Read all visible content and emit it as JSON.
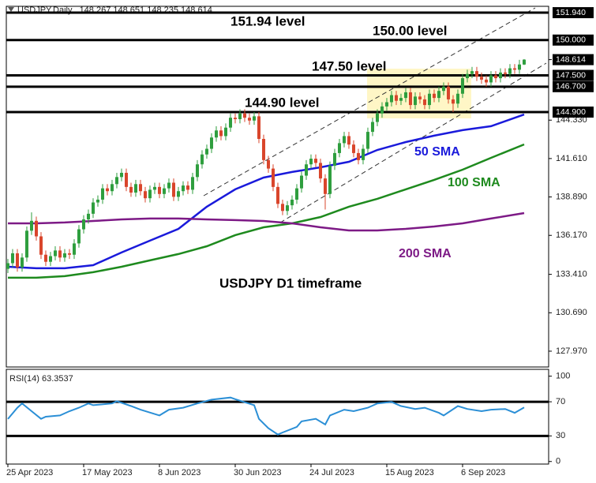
{
  "chart_data": [
    {
      "type": "candlestick",
      "title": "USDJPY,Daily",
      "annotation": "USDJPY D1 timeframe",
      "bull_color": "#2e9e3e",
      "bear_color": "#d9452b",
      "xlim": [
        -0.33,
        114.17
      ],
      "ylim": [
        126.85,
        152.39
      ],
      "yticks": [
        {
          "value": 127.97,
          "label": "127.970"
        },
        {
          "value": 130.69,
          "label": "130.690"
        },
        {
          "value": 133.41,
          "label": "133.410"
        },
        {
          "value": 136.17,
          "label": "136.170"
        },
        {
          "value": 138.89,
          "label": "138.890"
        },
        {
          "value": 141.61,
          "label": "141.610"
        },
        {
          "value": 144.33,
          "label": "144.330"
        }
      ],
      "levels": [
        {
          "value": 151.94,
          "label": "151.94 level",
          "axis_label": "151.940"
        },
        {
          "value": 150.0,
          "label": "150.00 level",
          "axis_label": "150.000"
        },
        {
          "value": 147.5,
          "label": "147.50 level",
          "axis_label": "147.500"
        },
        {
          "value": 146.7,
          "axis_label": "146.700"
        },
        {
          "value": 144.9,
          "label": "144.90 level",
          "axis_label": "144.900"
        }
      ],
      "candles": [
        [
          133.8,
          134.5,
          133.5,
          134.2
        ],
        [
          134.2,
          135.2,
          133.9,
          134.9
        ],
        [
          134.9,
          135.2,
          133.6,
          133.9
        ],
        [
          133.9,
          134.9,
          133.6,
          134.6
        ],
        [
          134.6,
          136.8,
          134.3,
          136.5
        ],
        [
          136.5,
          137.8,
          136.2,
          137.2
        ],
        [
          137.2,
          137.5,
          135.8,
          136.1
        ],
        [
          136.1,
          136.4,
          134.5,
          134.8
        ],
        [
          134.8,
          135.1,
          134.0,
          134.3
        ],
        [
          134.3,
          135.0,
          134.0,
          134.7
        ],
        [
          134.7,
          135.4,
          134.4,
          135.1
        ],
        [
          135.1,
          135.4,
          134.3,
          134.6
        ],
        [
          134.6,
          135.2,
          134.3,
          134.9
        ],
        [
          134.9,
          135.2,
          134.5,
          134.8
        ],
        [
          134.8,
          135.9,
          134.5,
          135.6
        ],
        [
          135.6,
          136.9,
          135.3,
          136.6
        ],
        [
          136.6,
          137.6,
          136.3,
          137.3
        ],
        [
          137.3,
          138.0,
          137.0,
          137.7
        ],
        [
          137.7,
          138.8,
          137.4,
          138.5
        ],
        [
          138.5,
          139.0,
          138.2,
          138.7
        ],
        [
          138.7,
          139.8,
          138.4,
          139.5
        ],
        [
          139.5,
          139.8,
          139.0,
          139.3
        ],
        [
          139.3,
          140.1,
          139.0,
          139.8
        ],
        [
          139.8,
          140.6,
          139.5,
          140.3
        ],
        [
          140.3,
          140.9,
          140.0,
          140.6
        ],
        [
          140.6,
          140.9,
          139.3,
          139.6
        ],
        [
          139.6,
          139.9,
          138.9,
          139.2
        ],
        [
          139.2,
          140.1,
          138.9,
          139.8
        ],
        [
          139.8,
          140.1,
          139.0,
          139.3
        ],
        [
          139.3,
          139.6,
          138.5,
          138.8
        ],
        [
          138.8,
          139.7,
          138.5,
          139.4
        ],
        [
          139.4,
          139.9,
          139.1,
          139.6
        ],
        [
          139.6,
          139.9,
          138.8,
          139.1
        ],
        [
          139.1,
          139.8,
          138.8,
          139.5
        ],
        [
          139.5,
          140.2,
          139.2,
          139.9
        ],
        [
          139.9,
          140.2,
          138.6,
          138.9
        ],
        [
          138.9,
          139.6,
          138.6,
          139.3
        ],
        [
          139.3,
          140.0,
          139.0,
          139.7
        ],
        [
          139.7,
          140.0,
          139.1,
          139.4
        ],
        [
          139.4,
          140.6,
          139.1,
          140.3
        ],
        [
          140.3,
          141.5,
          140.0,
          141.2
        ],
        [
          141.2,
          142.2,
          140.9,
          141.9
        ],
        [
          141.9,
          142.6,
          141.6,
          142.3
        ],
        [
          142.3,
          143.4,
          142.0,
          143.1
        ],
        [
          143.1,
          143.9,
          142.8,
          143.6
        ],
        [
          143.6,
          143.9,
          142.9,
          143.2
        ],
        [
          143.2,
          144.1,
          142.9,
          143.8
        ],
        [
          143.8,
          144.8,
          143.5,
          144.5
        ],
        [
          144.5,
          144.8,
          144.1,
          144.4
        ],
        [
          144.4,
          145.1,
          144.1,
          144.8
        ],
        [
          144.8,
          145.1,
          144.2,
          144.5
        ],
        [
          144.5,
          144.8,
          144.0,
          144.3
        ],
        [
          144.3,
          144.9,
          144.0,
          144.6
        ],
        [
          144.6,
          144.9,
          142.7,
          143.0
        ],
        [
          143.0,
          143.3,
          141.2,
          141.5
        ],
        [
          141.5,
          141.8,
          140.6,
          140.9
        ],
        [
          140.9,
          141.2,
          139.3,
          139.6
        ],
        [
          139.6,
          139.9,
          138.1,
          138.4
        ],
        [
          138.4,
          138.7,
          137.6,
          137.9
        ],
        [
          137.9,
          138.6,
          137.6,
          138.3
        ],
        [
          138.3,
          139.0,
          138.0,
          138.7
        ],
        [
          138.7,
          139.8,
          138.4,
          139.5
        ],
        [
          139.5,
          140.7,
          139.2,
          140.4
        ],
        [
          140.4,
          141.5,
          140.1,
          141.2
        ],
        [
          141.2,
          141.9,
          140.9,
          141.6
        ],
        [
          141.6,
          141.9,
          141.0,
          141.3
        ],
        [
          141.3,
          141.6,
          139.9,
          140.2
        ],
        [
          140.2,
          140.5,
          138.0,
          139.1
        ],
        [
          139.1,
          141.4,
          138.8,
          141.1
        ],
        [
          141.1,
          142.3,
          140.8,
          142.0
        ],
        [
          142.0,
          143.0,
          141.7,
          142.7
        ],
        [
          142.7,
          143.5,
          142.4,
          143.2
        ],
        [
          143.2,
          143.5,
          142.3,
          142.6
        ],
        [
          142.6,
          142.9,
          141.7,
          142.0
        ],
        [
          142.0,
          142.3,
          141.2,
          141.5
        ],
        [
          141.5,
          142.6,
          141.2,
          142.3
        ],
        [
          142.3,
          143.8,
          142.0,
          143.5
        ],
        [
          143.5,
          144.5,
          143.2,
          144.2
        ],
        [
          144.2,
          145.1,
          143.9,
          144.8
        ],
        [
          144.8,
          145.6,
          144.5,
          145.3
        ],
        [
          145.3,
          145.9,
          145.0,
          145.6
        ],
        [
          145.6,
          146.4,
          145.3,
          146.1
        ],
        [
          146.1,
          146.4,
          145.4,
          145.7
        ],
        [
          145.7,
          146.2,
          145.4,
          145.9
        ],
        [
          145.9,
          146.6,
          145.6,
          146.3
        ],
        [
          146.3,
          146.6,
          145.1,
          145.4
        ],
        [
          145.4,
          146.3,
          145.1,
          146.0
        ],
        [
          146.0,
          146.3,
          145.5,
          145.8
        ],
        [
          145.8,
          146.1,
          145.1,
          145.4
        ],
        [
          145.4,
          146.5,
          145.1,
          146.2
        ],
        [
          146.2,
          146.5,
          145.6,
          145.9
        ],
        [
          145.9,
          146.7,
          145.6,
          146.4
        ],
        [
          146.4,
          147.0,
          146.1,
          146.7
        ],
        [
          146.7,
          147.0,
          145.5,
          145.8
        ],
        [
          145.8,
          146.1,
          144.9,
          145.5
        ],
        [
          145.5,
          146.5,
          145.2,
          146.2
        ],
        [
          146.2,
          147.6,
          145.9,
          147.3
        ],
        [
          147.3,
          147.9,
          147.0,
          147.6
        ],
        [
          147.6,
          148.1,
          147.3,
          147.8
        ],
        [
          147.8,
          148.1,
          147.1,
          147.4
        ],
        [
          147.4,
          147.7,
          146.9,
          147.2
        ],
        [
          147.2,
          147.5,
          146.7,
          147.0
        ],
        [
          147.0,
          147.8,
          146.7,
          147.5
        ],
        [
          147.5,
          147.8,
          147.0,
          147.3
        ],
        [
          147.3,
          148.0,
          147.0,
          147.7
        ],
        [
          147.7,
          148.0,
          147.3,
          147.6
        ],
        [
          147.6,
          148.3,
          147.3,
          148.0
        ],
        [
          148.0,
          148.3,
          147.6,
          147.9
        ],
        [
          147.9,
          148.6,
          147.6,
          148.27
        ],
        [
          148.267,
          148.651,
          148.235,
          148.614
        ]
      ],
      "series": [
        {
          "name": "50 SMA",
          "color": "#1a1adb",
          "x": [
            0,
            6,
            12,
            18,
            24,
            30,
            36,
            42,
            48,
            54,
            60,
            66,
            72,
            78,
            84,
            90,
            96,
            102,
            109
          ],
          "values": [
            133.95,
            133.84,
            133.84,
            134.06,
            134.96,
            135.8,
            136.63,
            138.2,
            139.43,
            140.26,
            140.66,
            140.99,
            141.38,
            142.22,
            142.78,
            143.23,
            143.62,
            143.9,
            144.73
          ]
        },
        {
          "name": "100 SMA",
          "color": "#1e8a1e",
          "x": [
            0,
            6,
            12,
            18,
            24,
            30,
            36,
            42,
            48,
            54,
            60,
            66,
            72,
            78,
            84,
            90,
            96,
            102,
            109
          ],
          "values": [
            133.17,
            133.17,
            133.28,
            133.56,
            133.95,
            134.4,
            134.85,
            135.4,
            136.19,
            136.74,
            137.02,
            137.47,
            138.2,
            138.76,
            139.43,
            140.1,
            140.82,
            141.66,
            142.61
          ]
        },
        {
          "name": "200 SMA",
          "color": "#7d1a86",
          "x": [
            0,
            6,
            12,
            18,
            24,
            30,
            36,
            42,
            48,
            54,
            60,
            66,
            72,
            78,
            84,
            90,
            96,
            102,
            109
          ],
          "values": [
            137.02,
            137.02,
            137.08,
            137.19,
            137.3,
            137.36,
            137.36,
            137.3,
            137.25,
            137.19,
            137.02,
            136.74,
            136.52,
            136.52,
            136.63,
            136.8,
            137.02,
            137.36,
            137.75
          ]
        }
      ]
    },
    {
      "type": "line",
      "title": "RSI(14)",
      "color": "#2b8fd6",
      "xlim": [
        -0.33,
        114.17
      ],
      "ylim": [
        -3,
        108
      ],
      "yticks": [
        0,
        30,
        70,
        100
      ],
      "levels": [
        70,
        30
      ],
      "xticks": [
        {
          "value": 0,
          "label": "25 Apr 2023"
        },
        {
          "value": 16,
          "label": "17 May 2023"
        },
        {
          "value": 32,
          "label": "8 Jun 2023"
        },
        {
          "value": 48,
          "label": "30 Jun 2023"
        },
        {
          "value": 64,
          "label": "24 Jul 2023"
        },
        {
          "value": 80,
          "label": "15 Aug 2023"
        },
        {
          "value": 96,
          "label": "6 Sep 2023"
        }
      ],
      "x": [
        0,
        2,
        3,
        5,
        7,
        8,
        11,
        13,
        15,
        17,
        18,
        22,
        23,
        26,
        28,
        32,
        34,
        37,
        40,
        43,
        47,
        48,
        52,
        53,
        55,
        57,
        58,
        61,
        62,
        65,
        67,
        68,
        71,
        73,
        76,
        78,
        81,
        83,
        86,
        88,
        91,
        92,
        95,
        97,
        100,
        102,
        105,
        107,
        109
      ],
      "values": [
        49.8,
        63,
        68,
        59,
        50,
        52.5,
        54,
        59,
        63,
        68,
        66,
        68,
        70.7,
        65,
        60.7,
        54,
        60.7,
        63,
        68,
        72.5,
        75,
        73,
        66,
        50,
        39,
        31.6,
        34,
        40.6,
        47,
        50,
        43.4,
        54,
        60.7,
        59,
        63,
        68,
        69.8,
        65,
        61.6,
        63,
        57,
        54,
        65,
        61.6,
        59,
        60.7,
        61.6,
        57,
        63.3537
      ]
    }
  ]
}
